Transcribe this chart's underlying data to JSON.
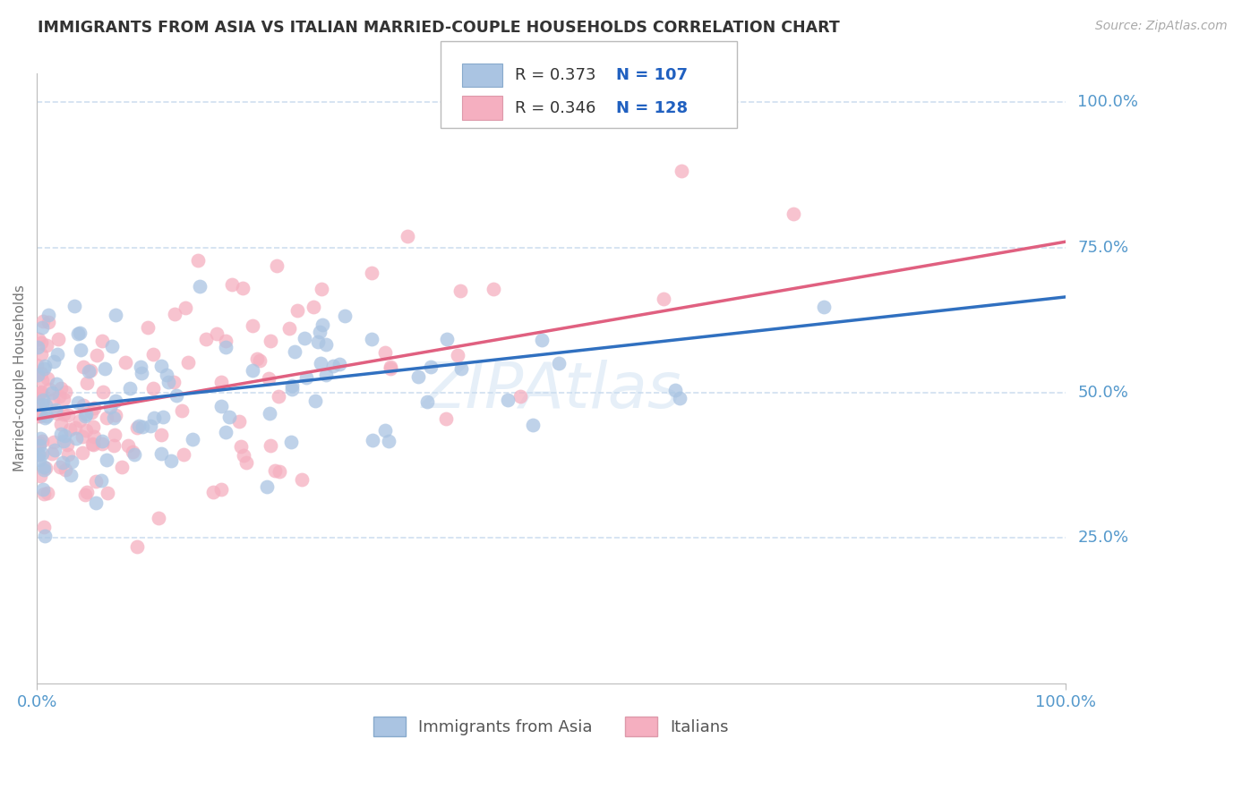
{
  "title": "IMMIGRANTS FROM ASIA VS ITALIAN MARRIED-COUPLE HOUSEHOLDS CORRELATION CHART",
  "source": "Source: ZipAtlas.com",
  "ylabel": "Married-couple Households",
  "watermark": "ZIPAtlas",
  "xlim": [
    0,
    1
  ],
  "ylim": [
    0.0,
    1.05
  ],
  "xtick_labels": [
    "0.0%",
    "100.0%"
  ],
  "ytick_labels": [
    "25.0%",
    "50.0%",
    "75.0%",
    "100.0%"
  ],
  "ytick_positions": [
    0.25,
    0.5,
    0.75,
    1.0
  ],
  "blue_R": 0.373,
  "blue_N": 107,
  "pink_R": 0.346,
  "pink_N": 128,
  "blue_color": "#aac4e2",
  "pink_color": "#f5afc0",
  "blue_line_color": "#3070c0",
  "pink_line_color": "#e06080",
  "legend_R_color": "#333333",
  "legend_N_color": "#2060c0",
  "title_color": "#333333",
  "axis_color": "#5599cc",
  "grid_color": "#d0dff0",
  "background_color": "#ffffff",
  "blue_seed": 12,
  "pink_seed": 99,
  "blue_intercept": 0.47,
  "blue_slope": 0.195,
  "pink_intercept": 0.455,
  "pink_slope": 0.305
}
